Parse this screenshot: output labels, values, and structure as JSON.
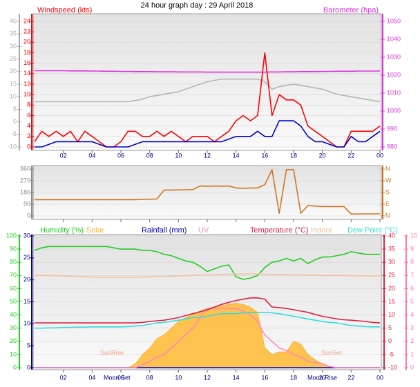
{
  "chart_data": [
    {
      "type": "line",
      "title": "24 hour graph day : 29 April 2018",
      "ylabel": "Windspeed (kts)",
      "y2label": "Barometer (hpa)",
      "grid": true,
      "x": [
        0,
        0.5,
        1,
        1.5,
        2,
        2.5,
        3,
        3.5,
        4,
        4.5,
        5,
        5.5,
        6,
        6.5,
        7,
        7.5,
        8,
        8.5,
        9,
        9.5,
        10,
        10.5,
        11,
        11.5,
        12,
        12.5,
        13,
        13.5,
        14,
        14.5,
        15,
        15.5,
        16,
        16.5,
        17,
        17.5,
        18,
        18.5,
        19,
        19.5,
        20,
        20.5,
        21,
        21.5,
        22,
        22.5,
        23,
        23.5,
        24
      ],
      "xlim": [
        0,
        24
      ],
      "xticks": [
        {
          "value": 2,
          "label": "02"
        },
        {
          "value": 4,
          "label": "04"
        },
        {
          "value": 6,
          "label": "06"
        },
        {
          "value": 8,
          "label": "08"
        },
        10,
        12,
        14,
        16,
        18,
        20,
        22,
        {
          "value": 24,
          "label": "00"
        }
      ],
      "ylim": [
        0,
        24
      ],
      "yticks": [
        0,
        2,
        4,
        6,
        8,
        10,
        12,
        14,
        16,
        18,
        20,
        22,
        24
      ],
      "y2lim": [
        980,
        1050
      ],
      "y2ticks": [
        980,
        990,
        1000,
        1010,
        1020,
        1030,
        1040,
        1050
      ],
      "y3lim": [
        -10,
        40
      ],
      "y3ticks": [
        -10,
        -5,
        0,
        5,
        10,
        15,
        20,
        25,
        30,
        35,
        40
      ],
      "series": [
        {
          "color": "#b4b4b4",
          "axis": "y3",
          "values": [
            8,
            8,
            8,
            8,
            8,
            8,
            8,
            8,
            8,
            8,
            8,
            8,
            8,
            8,
            8.5,
            9,
            10,
            10.5,
            11,
            11.5,
            12,
            13,
            14,
            15,
            16,
            16.5,
            17,
            17,
            17,
            17,
            17,
            17,
            16,
            13,
            14,
            14.5,
            15,
            14.5,
            14,
            13.5,
            13,
            12,
            11,
            10.5,
            10,
            9.5,
            9,
            8.5,
            8
          ]
        },
        {
          "color": "#e030e0",
          "axis": "y2",
          "values": [
            1022.5,
            1022.5,
            1022.5,
            1022.5,
            1022.5,
            1022.4,
            1022.4,
            1022.4,
            1022.3,
            1022.3,
            1022.2,
            1022.2,
            1022.1,
            1022.1,
            1022,
            1022,
            1022,
            1021.9,
            1021.9,
            1021.9,
            1021.8,
            1021.8,
            1021.8,
            1021.8,
            1021.7,
            1021.7,
            1021.7,
            1021.7,
            1021.7,
            1021.7,
            1021.7,
            1021.7,
            1021.7,
            1021.8,
            1021.8,
            1021.9,
            1021.9,
            1022,
            1022,
            1022,
            1022.1,
            1022.1,
            1022.2,
            1022.2,
            1022.2,
            1022.3,
            1022.3,
            1022.3,
            1022.4
          ]
        },
        {
          "color": "#ff0000",
          "axis": "y",
          "values": [
            1,
            3,
            2,
            3,
            2,
            3,
            1,
            3,
            2,
            1,
            0,
            0,
            1,
            3,
            3,
            2,
            2,
            3,
            2,
            3,
            2,
            1,
            2,
            2,
            2,
            1,
            2,
            3,
            5,
            6,
            5,
            6,
            18,
            6,
            10,
            9,
            9,
            8,
            4,
            3,
            2,
            1,
            0,
            0,
            3,
            3,
            3,
            3,
            4
          ]
        },
        {
          "color": "#0000cc",
          "axis": "y",
          "values": [
            0,
            0,
            0.5,
            1,
            1,
            1,
            1,
            1,
            1,
            0.5,
            0,
            0,
            0,
            0,
            0.5,
            1,
            1,
            1,
            1,
            1,
            1,
            1,
            1,
            1,
            1,
            1,
            1,
            1.5,
            2,
            2,
            2,
            3,
            2,
            2,
            5,
            5,
            5,
            4,
            2,
            1,
            1,
            0.5,
            0,
            0,
            2,
            1,
            1,
            2,
            3
          ]
        }
      ]
    },
    {
      "type": "line",
      "grid": true,
      "x": [
        0,
        0.5,
        1,
        1.5,
        2,
        2.5,
        3,
        3.5,
        4,
        4.5,
        5,
        5.5,
        6,
        6.5,
        7,
        7.5,
        8,
        8.5,
        9,
        9.5,
        10,
        10.5,
        11,
        11.5,
        12,
        12.5,
        13,
        13.5,
        14,
        14.5,
        15,
        15.5,
        16,
        16.5,
        17,
        17.5,
        18,
        18.5,
        19,
        19.5,
        20,
        20.5,
        21,
        21.5,
        22,
        22.5,
        23,
        23.5,
        24
      ],
      "xlim": [
        0,
        24
      ],
      "xticks": [
        2,
        4,
        6,
        8,
        10,
        12,
        14,
        16,
        18,
        20,
        22,
        24
      ],
      "ylim": [
        0,
        360
      ],
      "yticks": [
        0,
        90,
        180,
        270,
        360
      ],
      "y2lim": [
        0,
        360
      ],
      "y2ticks": [
        {
          "value": 0,
          "label": "N"
        },
        {
          "value": 90,
          "label": "E"
        },
        {
          "value": 180,
          "label": "S"
        },
        {
          "value": 270,
          "label": "W"
        },
        {
          "value": 360,
          "label": "N"
        }
      ],
      "series": [
        {
          "color": "#cc7722",
          "axis": "y",
          "values": [
            125,
            125,
            125,
            125,
            125,
            125,
            125,
            125,
            125,
            125,
            125,
            125,
            125,
            125,
            125,
            127,
            128,
            130,
            198,
            198,
            200,
            200,
            202,
            230,
            228,
            230,
            228,
            230,
            215,
            212,
            214,
            215,
            240,
            355,
            20,
            355,
            355,
            20,
            80,
            75,
            72,
            72,
            72,
            72,
            15,
            15,
            16,
            16,
            16
          ]
        }
      ]
    },
    {
      "type": "line",
      "grid": true,
      "x": [
        0,
        0.5,
        1,
        1.5,
        2,
        2.5,
        3,
        3.5,
        4,
        4.5,
        5,
        5.5,
        6,
        6.5,
        7,
        7.5,
        8,
        8.5,
        9,
        9.5,
        10,
        10.5,
        11,
        11.5,
        12,
        12.5,
        13,
        13.5,
        14,
        14.5,
        15,
        15.5,
        16,
        16.5,
        17,
        17.5,
        18,
        18.5,
        19,
        19.5,
        20,
        20.5,
        21,
        21.5,
        22,
        22.5,
        23,
        23.5,
        24
      ],
      "xlim": [
        0,
        24
      ],
      "xticks": [
        {
          "value": 2,
          "label": "02"
        },
        {
          "value": 4,
          "label": "04"
        },
        {
          "value": 6,
          "label": "06"
        },
        {
          "value": 8,
          "label": "08"
        },
        10,
        12,
        14,
        16,
        18,
        20,
        22,
        {
          "value": 24,
          "label": "00"
        }
      ],
      "ylim": [
        0,
        100
      ],
      "yticks": [
        0,
        10,
        20,
        30,
        40,
        50,
        60,
        70,
        80,
        90,
        100
      ],
      "y2lim": [
        -10,
        40
      ],
      "y2ticks": [
        -10,
        -5,
        0,
        5,
        10,
        15,
        20,
        25,
        30,
        35,
        40
      ],
      "y3lim": [
        0,
        10
      ],
      "y3ticks": [
        0,
        1,
        2,
        3,
        4,
        5,
        6,
        7,
        8,
        9,
        10
      ],
      "y4lim": [
        0,
        30
      ],
      "y4ticks": [
        0,
        5,
        10,
        15,
        20,
        25,
        30
      ],
      "annotations": [
        "SunRise",
        "SunSet",
        "Moon Set",
        "Moon Rise"
      ],
      "series": [
        {
          "name": "Humidity (%)",
          "color": "#22cc22",
          "axis": "y",
          "values": [
            89,
            91,
            92,
            92,
            92,
            92,
            92,
            92,
            92,
            92,
            92,
            91,
            90,
            90,
            90,
            89,
            89,
            88,
            86,
            85,
            83,
            81,
            80,
            77,
            73,
            75,
            77,
            78,
            69,
            67,
            68,
            70,
            76,
            80,
            81,
            83,
            81,
            83,
            79,
            82,
            84,
            84,
            85,
            86,
            88,
            87,
            86,
            86,
            86
          ]
        },
        {
          "name": "Solar",
          "color": "#ffb830",
          "axis": "y",
          "fill": true,
          "values": [
            0,
            0,
            0,
            0,
            0,
            0,
            0,
            0,
            0,
            0,
            0,
            0,
            0,
            0,
            3,
            10,
            15,
            22,
            25,
            30,
            35,
            38,
            41,
            43,
            45,
            46,
            47,
            48,
            49,
            48,
            46,
            42,
            15,
            10,
            12,
            12,
            20,
            18,
            10,
            6,
            3,
            1,
            0,
            0,
            0,
            0,
            0,
            0,
            0
          ]
        },
        {
          "name": "Rainfall (mm)",
          "color": "#0000aa",
          "axis": "y4",
          "values": [
            0,
            0,
            0,
            0,
            0,
            0,
            0,
            0,
            0,
            0,
            0,
            0,
            0,
            0,
            0,
            0,
            0,
            0,
            0,
            0,
            0,
            0,
            0,
            0,
            0,
            0,
            0,
            0,
            0,
            0,
            0,
            0,
            0,
            0,
            0,
            0,
            0,
            0,
            0,
            0,
            0,
            0,
            0,
            0,
            0,
            0,
            0,
            0,
            0
          ]
        },
        {
          "name": "UV",
          "color": "#ff88bb",
          "axis": "y3",
          "values": [
            0,
            0,
            0,
            0,
            0,
            0,
            0,
            0,
            0,
            0,
            0,
            0,
            0,
            0,
            0,
            0.2,
            0.5,
            0.8,
            1,
            1.5,
            2,
            2.5,
            3,
            3.8,
            4.5,
            4.5,
            4.5,
            4.5,
            4.5,
            4.3,
            4,
            3.5,
            2.5,
            2,
            1.5,
            1.3,
            1,
            0.8,
            0.5,
            0.4,
            0.3,
            0.1,
            0,
            0,
            0,
            0,
            0,
            0,
            0
          ]
        },
        {
          "name": "Temperature (°C)",
          "color": "#dd2244",
          "axis": "y2",
          "values": [
            7,
            7,
            7,
            7,
            7,
            7,
            7,
            7,
            7,
            7,
            7,
            7,
            7,
            7,
            7,
            7.2,
            7.5,
            7.8,
            8,
            8.5,
            9,
            9.8,
            10.5,
            11.2,
            12,
            13,
            14,
            14.8,
            15.5,
            16,
            16.5,
            16.5,
            16,
            13,
            12.8,
            12.5,
            12,
            11.5,
            11,
            10.2,
            9.5,
            9,
            8.5,
            8.2,
            8,
            7.8,
            7.5,
            7.2,
            7
          ]
        },
        {
          "name": "Indoor",
          "color": "#f5c0a0",
          "axis": "y2",
          "values": [
            25,
            25,
            25,
            24.9,
            24.8,
            24.7,
            24.6,
            24.5,
            24.4,
            24.3,
            24.3,
            24.3,
            24.3,
            24.3,
            24.3,
            24.4,
            24.5,
            24.5,
            24.6,
            24.7,
            24.8,
            24.9,
            25,
            25.1,
            25.2,
            25.3,
            25.4,
            25.5,
            25.5,
            25.6,
            25.6,
            25.6,
            25.5,
            25.4,
            25.3,
            25.3,
            25.2,
            25.2,
            25.1,
            25.1,
            25,
            25,
            25,
            25,
            24.9,
            24.9,
            24.8,
            24.8,
            24.8
          ]
        },
        {
          "name": "Dew Point (°C)",
          "color": "#33dddd",
          "axis": "y2",
          "values": [
            5,
            5,
            5.1,
            5.1,
            5.3,
            5.3,
            5.4,
            5.4,
            5.5,
            5.5,
            5.5,
            5.5,
            5.5,
            5.6,
            5.8,
            6,
            6.5,
            7,
            7.2,
            7.6,
            8,
            8.5,
            9,
            9.2,
            9.5,
            10,
            10.5,
            10.5,
            10.5,
            10.8,
            11,
            11,
            11,
            10.8,
            10.5,
            10,
            9.5,
            9,
            8.5,
            8,
            7.5,
            7.2,
            7,
            6.5,
            6,
            5.8,
            5.6,
            5.5,
            5.5
          ]
        }
      ]
    }
  ]
}
